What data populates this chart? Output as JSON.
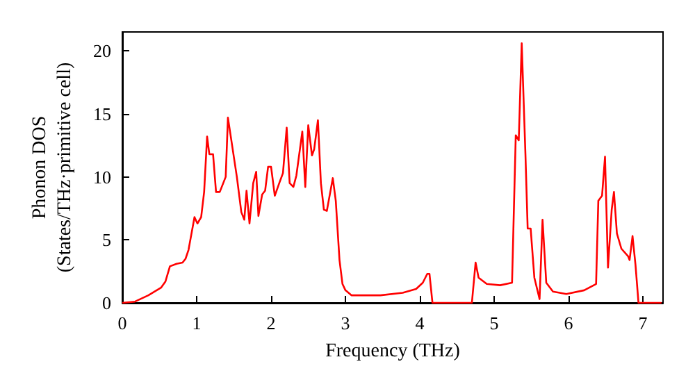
{
  "chart_data": {
    "type": "line",
    "xlabel": "Frequency (THz)",
    "ylabel": "Phonon DOS\n(States/THz·primitive cell)",
    "xlim": [
      0,
      7.27
    ],
    "ylim": [
      0,
      21.5
    ],
    "xticks": [
      0,
      1,
      2,
      3,
      4,
      5,
      6,
      7
    ],
    "yticks": [
      0,
      5,
      10,
      15,
      20
    ],
    "grid": false,
    "marker": "none",
    "line_style": "solid",
    "series": [
      {
        "color": "#ff0000",
        "x": [
          0,
          0.17,
          0.35,
          0.52,
          0.58,
          0.64,
          0.73,
          0.81,
          0.85,
          0.89,
          0.97,
          1.01,
          1.06,
          1.1,
          1.14,
          1.17,
          1.22,
          1.26,
          1.31,
          1.39,
          1.42,
          1.54,
          1.6,
          1.64,
          1.67,
          1.71,
          1.76,
          1.8,
          1.83,
          1.88,
          1.92,
          1.96,
          2.0,
          2.05,
          2.11,
          2.16,
          2.21,
          2.25,
          2.3,
          2.34,
          2.42,
          2.46,
          2.5,
          2.55,
          2.58,
          2.63,
          2.67,
          2.71,
          2.75,
          2.83,
          2.87,
          2.92,
          2.96,
          3.0,
          3.08,
          3.47,
          3.77,
          3.95,
          4.04,
          4.1,
          4.13,
          4.17,
          4.7,
          4.75,
          4.79,
          4.9,
          5.08,
          5.24,
          5.29,
          5.33,
          5.37,
          5.42,
          5.45,
          5.49,
          5.54,
          5.61,
          5.65,
          5.7,
          5.79,
          5.97,
          6.21,
          6.37,
          6.4,
          6.45,
          6.49,
          6.53,
          6.58,
          6.61,
          6.65,
          6.71,
          6.8,
          6.82,
          6.86,
          6.9,
          6.94,
          7.25
        ],
        "values": [
          0,
          0.1,
          0.6,
          1.2,
          1.7,
          2.9,
          3.1,
          3.2,
          3.5,
          4.2,
          6.8,
          6.3,
          6.8,
          8.8,
          13.2,
          11.8,
          11.8,
          8.8,
          8.8,
          10.0,
          14.7,
          10.0,
          7.2,
          6.6,
          8.9,
          6.3,
          9.5,
          10.4,
          6.9,
          8.6,
          8.9,
          10.8,
          10.8,
          8.5,
          9.5,
          10.3,
          13.9,
          9.5,
          9.2,
          10.1,
          13.6,
          9.2,
          14.1,
          11.7,
          12.2,
          14.5,
          9.5,
          7.4,
          7.3,
          9.9,
          8.1,
          3.4,
          1.5,
          1.0,
          0.6,
          0.6,
          0.8,
          1.1,
          1.6,
          2.3,
          2.3,
          0,
          0,
          3.2,
          2.0,
          1.5,
          1.4,
          1.6,
          13.3,
          12.9,
          20.6,
          11.8,
          5.9,
          5.9,
          2.0,
          0.3,
          6.6,
          1.6,
          0.9,
          0.7,
          1.0,
          1.5,
          8.1,
          8.5,
          11.6,
          2.8,
          7.4,
          8.8,
          5.5,
          4.3,
          3.7,
          3.4,
          5.3,
          3.0,
          0,
          0
        ]
      }
    ]
  }
}
